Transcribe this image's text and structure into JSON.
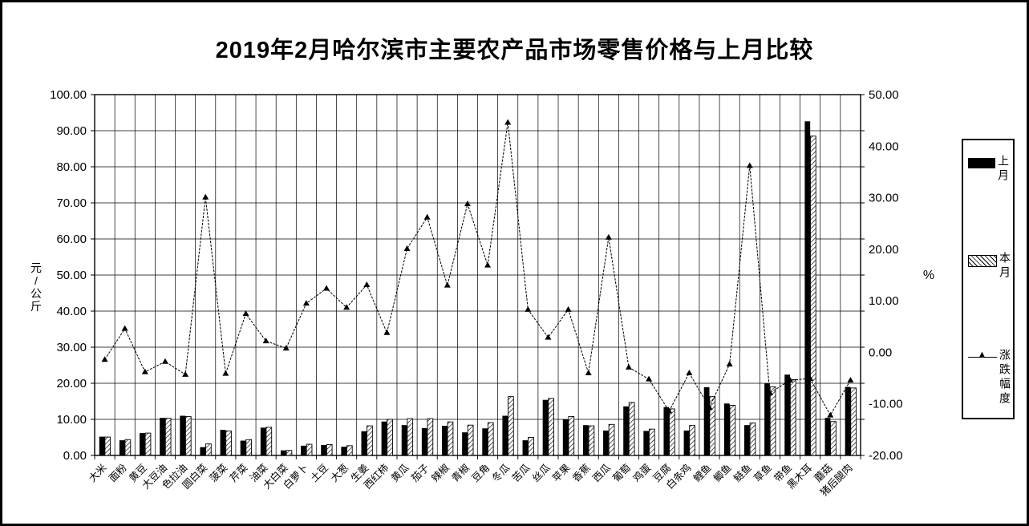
{
  "window": {
    "background": "#ffffff",
    "border_color": "#000000"
  },
  "chart_data": {
    "type": "combo",
    "title": "2019年2月哈尔滨市主要农产品市场零售价格与上月比较",
    "categories": [
      "大米",
      "面粉",
      "黄豆",
      "大豆油",
      "色拉油",
      "圆白菜",
      "菠菜",
      "芹菜",
      "油菜",
      "大白菜",
      "白萝卜",
      "土豆",
      "大葱",
      "生姜",
      "西红柿",
      "黄瓜",
      "茄子",
      "辣椒",
      "青椒",
      "豆角",
      "冬瓜",
      "苦瓜",
      "丝瓜",
      "苹果",
      "香蕉",
      "西瓜",
      "葡萄",
      "鸡蛋",
      "豆腐",
      "白条鸡",
      "鲤鱼",
      "鲫鱼",
      "鲢鱼",
      "草鱼",
      "带鱼",
      "黑木耳",
      "蘑菇",
      "猪后腿肉"
    ],
    "series": [
      {
        "name": "上月",
        "type": "bar",
        "style": "solid-black",
        "values": [
          5.2,
          4.2,
          6.2,
          10.4,
          11.0,
          2.3,
          7.1,
          4.1,
          7.7,
          1.4,
          2.7,
          2.9,
          2.4,
          6.7,
          9.4,
          8.4,
          7.6,
          8.2,
          6.4,
          7.5,
          11.0,
          4.2,
          15.4,
          10.0,
          8.4,
          6.9,
          13.6,
          6.8,
          13.4,
          6.9,
          18.9,
          14.4,
          8.4,
          20.0,
          22.4,
          92.6,
          10.4,
          19.0
        ]
      },
      {
        "name": "本月",
        "type": "bar",
        "style": "hatched",
        "values": [
          5.1,
          4.4,
          6.2,
          10.3,
          10.8,
          3.2,
          6.8,
          4.4,
          7.8,
          1.4,
          3.1,
          3.0,
          2.7,
          8.2,
          10.0,
          10.2,
          10.2,
          9.3,
          8.4,
          9.1,
          16.3,
          5.0,
          15.8,
          10.8,
          8.2,
          8.6,
          14.7,
          7.3,
          12.9,
          8.3,
          16.3,
          13.9,
          9.0,
          19.0,
          21.0,
          88.5,
          9.4,
          18.7
        ]
      },
      {
        "name": "涨跌幅度",
        "type": "line",
        "marker": "triangle",
        "axis": "right",
        "values": [
          -1.4,
          4.6,
          -3.8,
          -1.8,
          -4.3,
          30.1,
          -4.1,
          7.5,
          2.2,
          0.8,
          9.5,
          12.4,
          8.7,
          13.1,
          3.8,
          20.1,
          26.2,
          13.0,
          28.8,
          16.9,
          44.6,
          8.3,
          2.9,
          8.3,
          -4.0,
          22.3,
          -2.9,
          -5.2,
          -11.4,
          -4.0,
          -10.7,
          -2.3,
          36.2,
          -7.9,
          -5.4,
          -5.1,
          -12.2,
          -5.4
        ]
      }
    ],
    "left_axis": {
      "title": "元/公斤",
      "min": 0,
      "max": 100,
      "step": 10,
      "tick_labels": [
        "0.00",
        "10.00",
        "20.00",
        "30.00",
        "40.00",
        "50.00",
        "60.00",
        "70.00",
        "80.00",
        "90.00",
        "100.00"
      ]
    },
    "right_axis": {
      "title": "%",
      "min": -20,
      "max": 50,
      "step": 10,
      "tick_labels": [
        "-20.00",
        "-10.00",
        "0.00",
        "10.00",
        "20.00",
        "30.00",
        "40.00",
        "50.00"
      ]
    },
    "legend": {
      "position": "right",
      "entries": [
        "上月",
        "本月",
        "涨跌幅度"
      ]
    },
    "grid": true,
    "colors": {
      "bar_last_month": "#000000",
      "bar_this_month_hatch": "#000000",
      "line": "#000000",
      "plot_border": "#000000"
    }
  }
}
